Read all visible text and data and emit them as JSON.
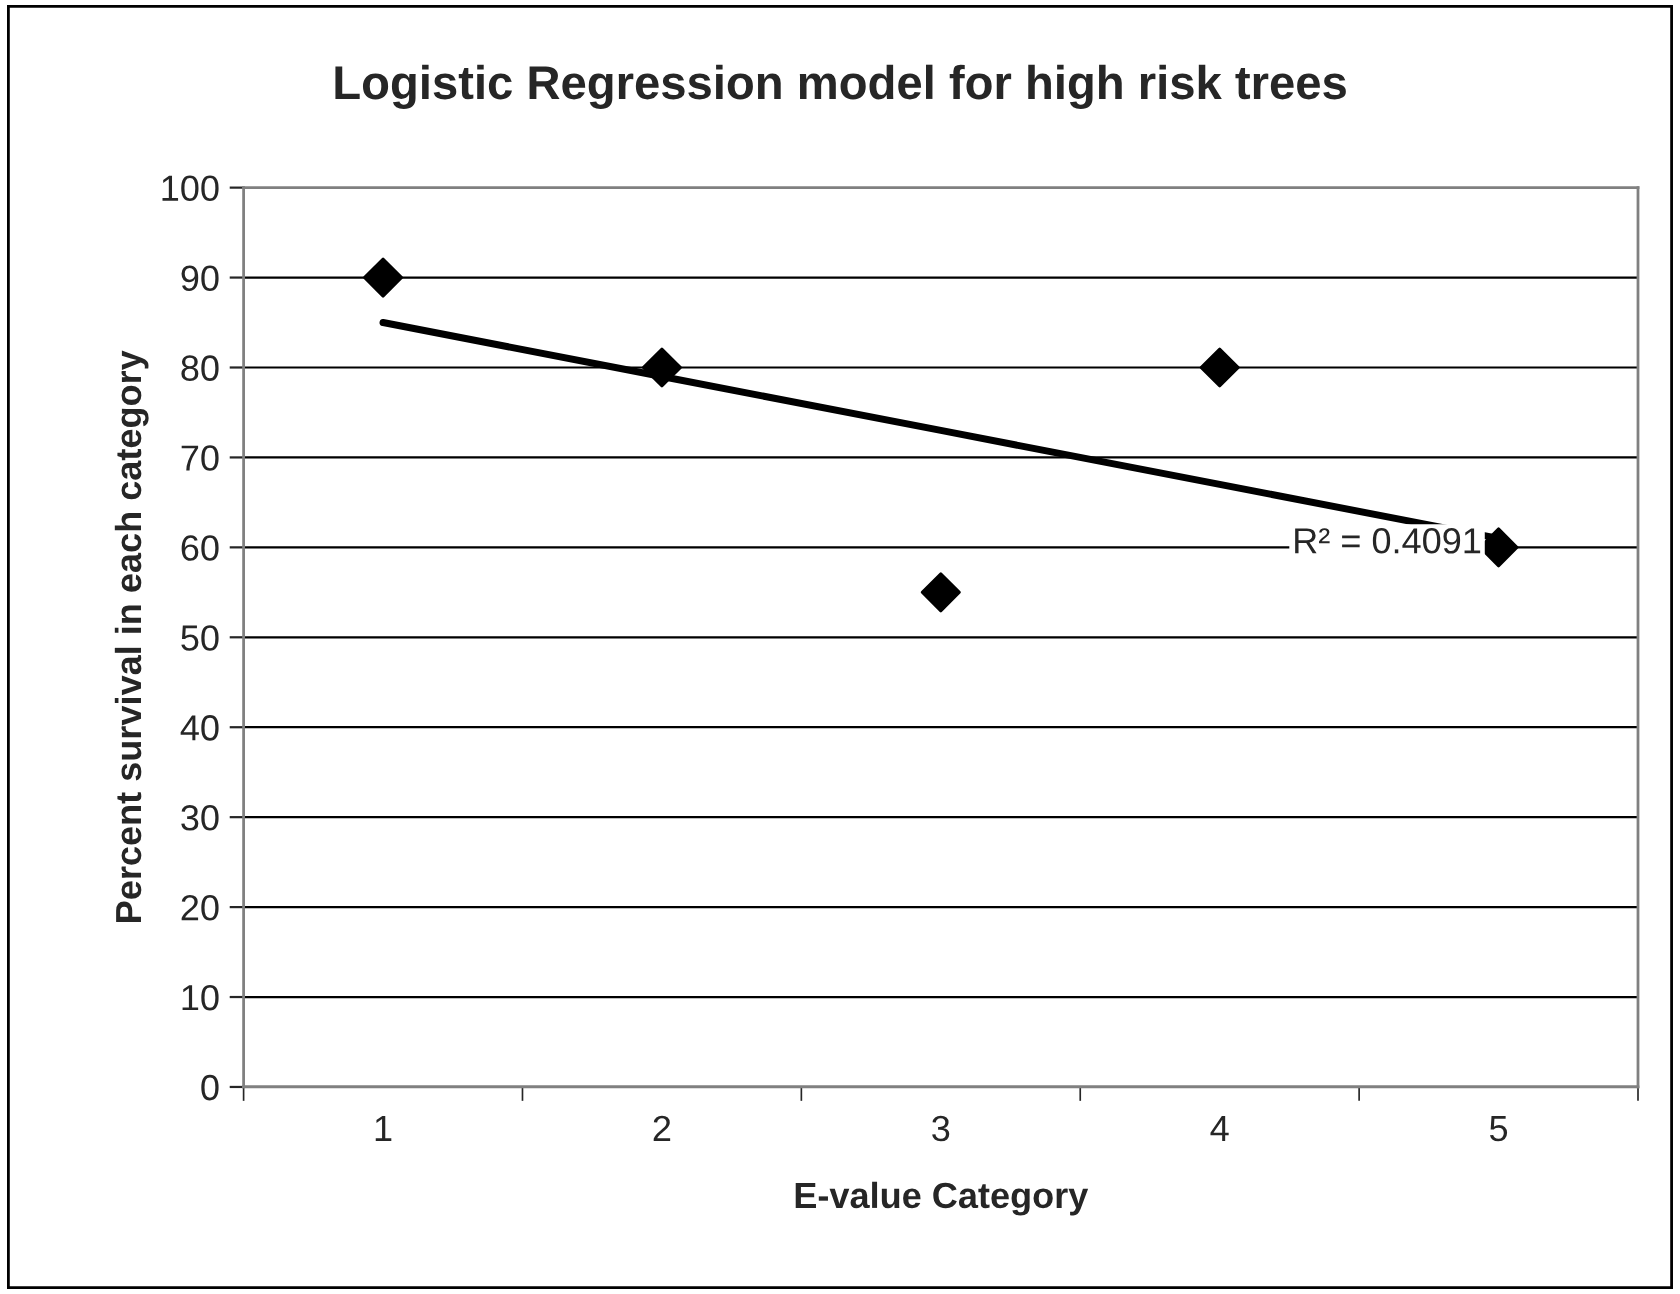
{
  "chart_data": {
    "type": "scatter",
    "title": "Logistic Regression model for high risk trees",
    "xlabel": "E-value Category",
    "ylabel": "Percent survival in each category",
    "categories": [
      "1",
      "2",
      "3",
      "4",
      "5"
    ],
    "series": [
      {
        "color": "#000000",
        "marker": "diamond",
        "values": [
          90,
          80,
          55,
          80,
          60
        ]
      },
      {
        "type": "line",
        "color": "#000000",
        "marker": "none",
        "line_style": "solid",
        "values": [
          85,
          79,
          73,
          67,
          61
        ]
      }
    ],
    "annotations": [
      "R² = 0.4091"
    ],
    "ylim": [
      0,
      100
    ],
    "yticks": [
      0,
      10,
      20,
      30,
      40,
      50,
      60,
      70,
      80,
      90,
      100
    ],
    "grid": "y",
    "legend": false
  }
}
